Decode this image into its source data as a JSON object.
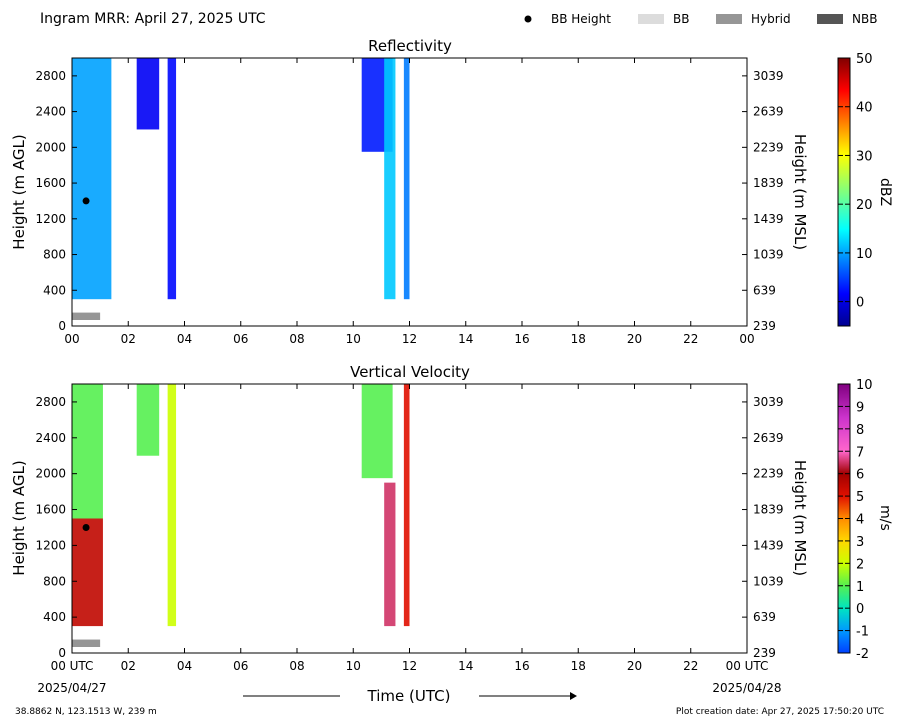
{
  "header": {
    "title": "Ingram MRR:  April 27, 2025 UTC",
    "legend": [
      {
        "label": "BB Height",
        "kind": "dot",
        "color": "#000000"
      },
      {
        "label": "BB",
        "kind": "box",
        "color": "#dcdcdc"
      },
      {
        "label": "Hybrid",
        "kind": "box",
        "color": "#969696"
      },
      {
        "label": "NBB",
        "kind": "box",
        "color": "#555555"
      }
    ]
  },
  "footer": {
    "location": "38.8862 N, 123.1513 W, 239 m",
    "creation": "Plot creation date: Apr 27, 2025 17:50:20 UTC",
    "xlabel": "Time (UTC)",
    "start_date": "2025/04/27",
    "end_date": "2025/04/28"
  },
  "chart_data": [
    {
      "type": "heatmap",
      "title": "Reflectivity",
      "ylabel": "Height (m AGL)",
      "ylabel_right": "Height (m MSL)",
      "x_ticks": [
        "00",
        "02",
        "04",
        "06",
        "08",
        "10",
        "12",
        "14",
        "16",
        "18",
        "20",
        "22",
        "00"
      ],
      "y_ticks": [
        0,
        400,
        800,
        1200,
        1600,
        2000,
        2400,
        2800
      ],
      "y_ticks_right": [
        239,
        639,
        1039,
        1439,
        1839,
        2239,
        2639,
        3039
      ],
      "xlim_hours": [
        0,
        24
      ],
      "ylim_m_agl": [
        0,
        3000
      ],
      "colorbar": {
        "label": "dBZ",
        "range": [
          -5,
          50
        ],
        "ticks": [
          0,
          10,
          20,
          30,
          40,
          50
        ],
        "colormap": "jet"
      },
      "bb_height": [
        {
          "time_h": 0.5,
          "height_m": 1400
        }
      ],
      "bb_type_bars": [
        {
          "start_h": 0.0,
          "end_h": 1.0,
          "type": "Hybrid"
        }
      ],
      "echo_regions": [
        {
          "start_h": 0.0,
          "end_h": 1.4,
          "bottom_m": 300,
          "top_m": 3000,
          "value": 10
        },
        {
          "start_h": 2.3,
          "end_h": 3.1,
          "bottom_m": 2200,
          "top_m": 3000,
          "value": 1
        },
        {
          "start_h": 3.4,
          "end_h": 3.7,
          "bottom_m": 300,
          "top_m": 3000,
          "value": 2
        },
        {
          "start_h": 10.3,
          "end_h": 11.4,
          "bottom_m": 1950,
          "top_m": 3000,
          "value": 3
        },
        {
          "start_h": 11.1,
          "end_h": 11.5,
          "bottom_m": 300,
          "top_m": 3000,
          "value": 12
        },
        {
          "start_h": 11.8,
          "end_h": 12.0,
          "bottom_m": 300,
          "top_m": 3000,
          "value": 8
        }
      ]
    },
    {
      "type": "heatmap",
      "title": "Vertical Velocity",
      "ylabel": "Height (m AGL)",
      "ylabel_right": "Height (m MSL)",
      "x_ticks": [
        "00 UTC",
        "02",
        "04",
        "06",
        "08",
        "10",
        "12",
        "14",
        "16",
        "18",
        "20",
        "22",
        "00 UTC"
      ],
      "y_ticks": [
        0,
        400,
        800,
        1200,
        1600,
        2000,
        2400,
        2800
      ],
      "y_ticks_right": [
        239,
        639,
        1039,
        1439,
        1839,
        2239,
        2639,
        3039
      ],
      "xlim_hours": [
        0,
        24
      ],
      "ylim_m_agl": [
        0,
        3000
      ],
      "colorbar": {
        "label": "m/s",
        "range": [
          -2,
          10
        ],
        "ticks": [
          -2,
          -1,
          0,
          1,
          2,
          3,
          4,
          5,
          6,
          7,
          8,
          9,
          10
        ],
        "colormap": "velocity"
      },
      "bb_height": [
        {
          "time_h": 0.5,
          "height_m": 1400
        }
      ],
      "bb_type_bars": [
        {
          "start_h": 0.0,
          "end_h": 1.0,
          "type": "Hybrid"
        }
      ],
      "echo_regions": [
        {
          "start_h": 0.0,
          "end_h": 1.1,
          "bottom_m": 1500,
          "top_m": 3000,
          "value": 1
        },
        {
          "start_h": 0.0,
          "end_h": 1.1,
          "bottom_m": 300,
          "top_m": 1500,
          "value": 5.5
        },
        {
          "start_h": 2.3,
          "end_h": 3.1,
          "bottom_m": 2200,
          "top_m": 3000,
          "value": 1
        },
        {
          "start_h": 3.4,
          "end_h": 3.7,
          "bottom_m": 300,
          "top_m": 3000,
          "value": 2
        },
        {
          "start_h": 10.3,
          "end_h": 11.4,
          "bottom_m": 1950,
          "top_m": 3000,
          "value": 1
        },
        {
          "start_h": 11.1,
          "end_h": 11.5,
          "bottom_m": 300,
          "top_m": 1900,
          "value": 6.5
        },
        {
          "start_h": 11.8,
          "end_h": 12.0,
          "bottom_m": 300,
          "top_m": 3000,
          "value": 5
        }
      ]
    }
  ]
}
